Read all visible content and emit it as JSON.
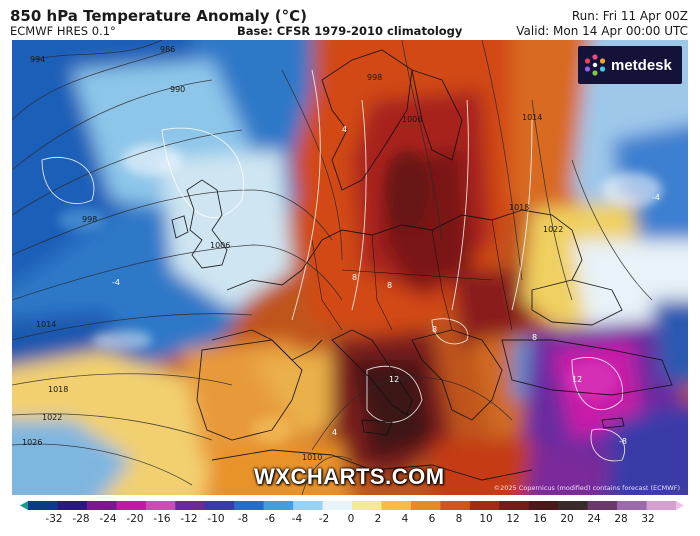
{
  "header": {
    "title": "850 hPa Temperature Anomaly (°C)",
    "model": "ECMWF HRES 0.1°",
    "base": "Base: CFSR 1979-2010 climatology",
    "run": "Run: Fri 11 Apr 00Z",
    "valid": "Valid: Mon 14 Apr 00:00 UTC"
  },
  "logo": {
    "text": "metdesk",
    "icon": "metdesk-logo-icon"
  },
  "watermark": "WXCHARTS.COM",
  "copyright": "©2025 Copernicus (modified) contains forecast (ECMWF)",
  "map": {
    "isobar_labels": [
      "986",
      "990",
      "994",
      "998",
      "1006",
      "1014",
      "1018",
      "1022",
      "1026",
      "1010",
      "1018",
      "1022",
      "1006",
      "1014",
      "998"
    ],
    "anomaly_labels": [
      "-4",
      "4",
      "8",
      "8",
      "8",
      "12",
      "12",
      "8",
      "4",
      "-8",
      "-4"
    ]
  },
  "colorbar": {
    "ticks": [
      "-32",
      "-28",
      "-24",
      "-20",
      "-16",
      "-12",
      "-10",
      "-8",
      "-6",
      "-4",
      "-2",
      "0",
      "2",
      "4",
      "6",
      "8",
      "10",
      "12",
      "16",
      "20",
      "24",
      "28",
      "32"
    ],
    "colors": [
      "#1a9a8a",
      "#0d3a8a",
      "#2a1a7a",
      "#7a1a8a",
      "#c21a9a",
      "#d04ab0",
      "#6a2a9a",
      "#3a3ab0",
      "#2a6ad0",
      "#4a9ae0",
      "#9ad0f0",
      "#e8f4fa",
      "#f4e8a0",
      "#f2c040",
      "#e88a20",
      "#d4541a",
      "#a8281a",
      "#7a1a1a",
      "#4a1a1a",
      "#3a2a2a",
      "#6a3a6a",
      "#9a6aaa",
      "#d4a0d0",
      "#f0c0e8"
    ]
  }
}
